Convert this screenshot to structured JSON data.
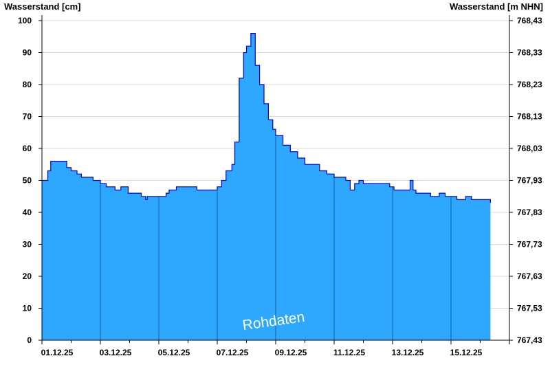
{
  "chart_data": {
    "type": "area",
    "ylabel": "Wasserstand [cm]",
    "ylabel_right": "Wasserstand [m NHN]",
    "ylim": [
      0,
      100
    ],
    "y_ticks": [
      0,
      10,
      20,
      30,
      40,
      50,
      60,
      70,
      80,
      90,
      100
    ],
    "y2lim": [
      767.43,
      768.43
    ],
    "y2_ticks": [
      "767,43",
      "767,53",
      "767,63",
      "767,73",
      "767,83",
      "767,93",
      "768,03",
      "768,13",
      "768,23",
      "768,33",
      "768,43"
    ],
    "x_ticks": [
      "01.12.25",
      "03.12.25",
      "05.12.25",
      "07.12.25",
      "09.12.25",
      "11.12.25",
      "13.12.25",
      "15.12.25"
    ],
    "xlim_days": [
      1,
      17
    ],
    "grid": "horizontal",
    "annotation": "Rohdaten",
    "colors": {
      "fill": "#2ea8ff",
      "line": "#0000cc",
      "grid": "#d8d8d8",
      "day_lines": "#1060a0"
    },
    "series": [
      {
        "x": [
          1.0,
          1.2,
          1.3,
          1.75,
          1.85,
          2.0,
          2.2,
          2.35,
          2.75,
          3.0,
          3.2,
          3.3,
          3.5,
          3.55,
          3.7,
          3.95,
          4.05,
          4.4,
          4.55,
          4.6,
          4.9,
          5.25,
          5.35,
          5.6,
          5.8,
          6.3,
          6.7,
          6.85,
          7.0,
          7.15,
          7.3,
          7.5,
          7.6,
          7.75,
          7.9,
          8.0,
          8.15,
          8.3,
          8.45,
          8.6,
          8.75,
          8.9,
          9.0,
          9.25,
          9.5,
          9.75,
          10.0,
          10.5,
          10.75,
          11.0,
          11.4,
          11.55,
          11.7,
          11.85,
          12.0,
          12.15,
          12.3,
          12.5,
          12.8,
          12.9,
          13.05,
          13.2,
          13.6,
          13.7,
          13.8,
          14.0,
          14.3,
          14.6,
          14.8,
          15.2,
          15.5,
          15.7,
          16.0,
          16.3,
          16.35
        ],
        "y": [
          50,
          53,
          56,
          56,
          54,
          53,
          52,
          51,
          50,
          49,
          48,
          48,
          47,
          47,
          48,
          46,
          46,
          45,
          44,
          45,
          45,
          46,
          47,
          48,
          48,
          47,
          47,
          47,
          48,
          50,
          53,
          55,
          62,
          82,
          90,
          92,
          96,
          86,
          80,
          74,
          69,
          66,
          64,
          61,
          59,
          57,
          55,
          53,
          52,
          51,
          50,
          47,
          49,
          50,
          49,
          49,
          49,
          49,
          49,
          48,
          47,
          47,
          50,
          47,
          46,
          46,
          45,
          46,
          45,
          44,
          45,
          44,
          44,
          44,
          43
        ]
      }
    ]
  }
}
